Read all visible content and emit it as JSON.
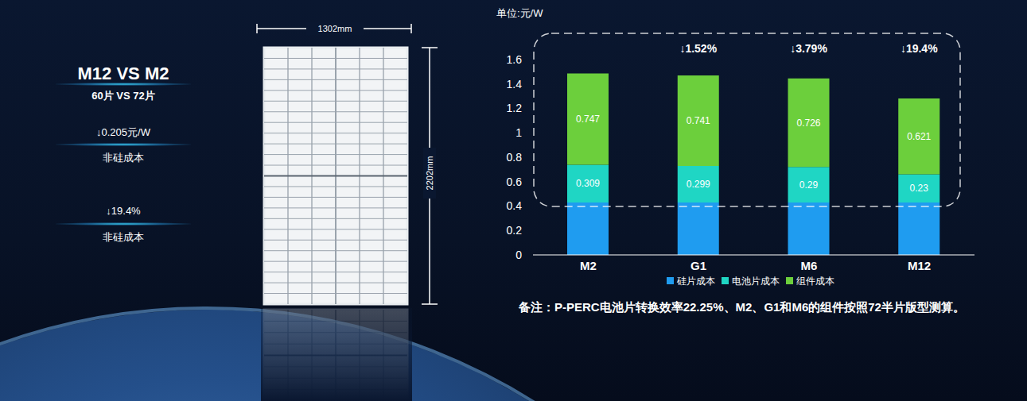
{
  "chart_data": {
    "type": "bar",
    "stacked": true,
    "unit_label": "单位:元/W",
    "categories": [
      "M2",
      "G1",
      "M6",
      "M12"
    ],
    "series": [
      {
        "name": "硅片成本",
        "color": "#1f9cf0",
        "values": [
          0.43,
          0.43,
          0.43,
          0.43
        ]
      },
      {
        "name": "电池片成本",
        "color": "#1fd6c4",
        "values": [
          0.309,
          0.299,
          0.29,
          0.23
        ],
        "data_labels": true
      },
      {
        "name": "组件成本",
        "color": "#6ccf3c",
        "values": [
          0.747,
          0.741,
          0.726,
          0.621
        ],
        "data_labels": true
      }
    ],
    "ylim": [
      0,
      1.6
    ],
    "yticks": [
      0,
      0.2,
      0.4,
      0.6,
      0.8,
      1,
      1.2,
      1.4,
      1.6
    ],
    "grid": false,
    "legend": "bottom",
    "annotations": [
      {
        "category": "G1",
        "text": "↓1.52%"
      },
      {
        "category": "M6",
        "text": "↓3.79%"
      },
      {
        "category": "M12",
        "text": "↓19.4%"
      }
    ],
    "note": "备注：P-PERC电池片转换效率22.25%、M2、G1和M6的组件按照72半片版型测算。"
  },
  "left_panel": {
    "title": "M12 VS M2",
    "subtitle": "60片 VS 72片",
    "items": [
      {
        "value": "↓0.205元/W",
        "label": "非硅成本"
      },
      {
        "value": "↓19.4%",
        "label": "非硅成本"
      }
    ]
  },
  "module": {
    "width_label": "1302mm",
    "height_label": "2202mm"
  }
}
